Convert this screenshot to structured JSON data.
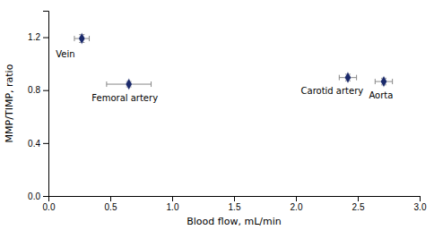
{
  "chart_data": {
    "type": "scatter",
    "xlabel": "Blood flow, mL/min",
    "ylabel": "MMP/TIMP, ratio",
    "x": [
      0.27,
      0.65,
      2.42,
      2.71
    ],
    "values": [
      1.19,
      0.845,
      0.895,
      0.865
    ],
    "xerr": [
      0.06,
      0.18,
      0.07,
      0.07
    ],
    "yerr": [
      0.03,
      0.02,
      0.025,
      0.025
    ],
    "color": "#1B2A6B",
    "marker": "diamond",
    "annotations": [
      {
        "text": "Vein",
        "x": 0.06,
        "y": 1.105
      },
      {
        "text": "Femoral artery",
        "x": 0.35,
        "y": 0.77
      },
      {
        "text": "Carotid artery",
        "x": 2.04,
        "y": 0.825
      },
      {
        "text": "Aorta",
        "x": 2.59,
        "y": 0.79
      }
    ],
    "xlim": [
      0.0,
      3.0
    ],
    "ylim": [
      0.0,
      1.4
    ],
    "xticks": [
      {
        "value": 0,
        "label": "0.0"
      },
      0.5,
      {
        "value": 1,
        "label": "1.0"
      },
      1.5,
      {
        "value": 2,
        "label": "2.0"
      },
      2.5,
      {
        "value": 3,
        "label": "3.0"
      }
    ],
    "yticks": [
      {
        "value": 0,
        "label": "0.0"
      },
      0.4,
      0.8,
      1.2
    ],
    "grid": false
  }
}
